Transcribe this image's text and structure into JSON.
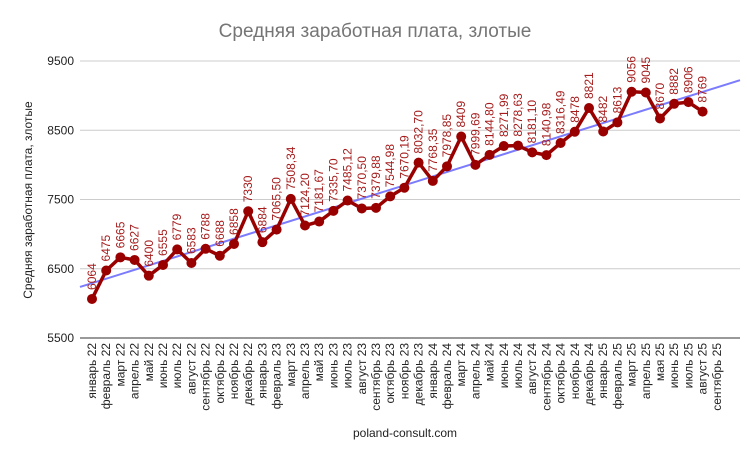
{
  "chart_data": {
    "type": "line",
    "title": "Средняя заработная плата, злотые",
    "xlabel": "poland-consult.com",
    "ylabel": "Средняя заработная плата, злотые",
    "ylim": [
      5500,
      9500
    ],
    "yticks": [
      5500,
      6500,
      7500,
      8500,
      9500
    ],
    "grid": true,
    "line_color": "#990000",
    "trend_color": "#7b7bff",
    "label_color": "#a61c1c",
    "categories": [
      "январь 22",
      "февраль 22",
      "март 22",
      "апрель 22",
      "май 22",
      "июнь 22",
      "июль 22",
      "август 22",
      "сентябрь 22",
      "октябрь 22",
      "ноябрь 22",
      "декабрь 22",
      "январь 23",
      "февраль 23",
      "март 23",
      "апрель 23",
      "май 23",
      "июнь 23",
      "июль 23",
      "август 23",
      "сентябрь 23",
      "октябрь 23",
      "ноябрь 23",
      "декабрь 23",
      "январь 24",
      "февраль 24",
      "март 24",
      "апрель 24",
      "май 24",
      "июнь 24",
      "июль 24",
      "август 24",
      "сентябрь 24",
      "октябрь 24",
      "ноябрь 24",
      "декабрь 24",
      "январь 25",
      "февраль 25",
      "март 25",
      "апрель 25",
      "мая 25",
      "июнь 25",
      "июль 25",
      "август 25",
      "сентябрь 25"
    ],
    "values": [
      6064,
      6475,
      6665,
      6627,
      6400,
      6555,
      6779,
      6583,
      6788,
      6688,
      6858,
      7330,
      6884,
      7065.5,
      7508.34,
      7124.2,
      7181.67,
      7335.7,
      7485.12,
      7370.5,
      7379.88,
      7544.98,
      7670.19,
      8032.7,
      7768.35,
      7978.85,
      8409,
      7999.69,
      8144.8,
      8271.99,
      8278.63,
      8181.1,
      8140.98,
      8316.49,
      8478,
      8821,
      8482,
      8613,
      9056,
      9045,
      8670,
      8882,
      8906,
      8769,
      null
    ],
    "data_labels": [
      "6064",
      "6475",
      "6665",
      "6627",
      "6400",
      "6555",
      "6779",
      "6583",
      "6788",
      "6688",
      "6858",
      "7330",
      "6884",
      "7065,50",
      "7508,34",
      "7124,20",
      "7181,67",
      "7335,70",
      "7485,12",
      "7370,50",
      "7379,88",
      "7544,98",
      "7670,19",
      "8032,70",
      "7768,35",
      "7978,85",
      "8409",
      "7999,69",
      "8144,80",
      "8271,99",
      "8278,63",
      "8181,10",
      "8140,98",
      "8316,49",
      "8478",
      "8821",
      "8482",
      "8613",
      "9056",
      "9045",
      "8670",
      "8882",
      "8906",
      "8769",
      ""
    ],
    "trendline": "linear"
  }
}
